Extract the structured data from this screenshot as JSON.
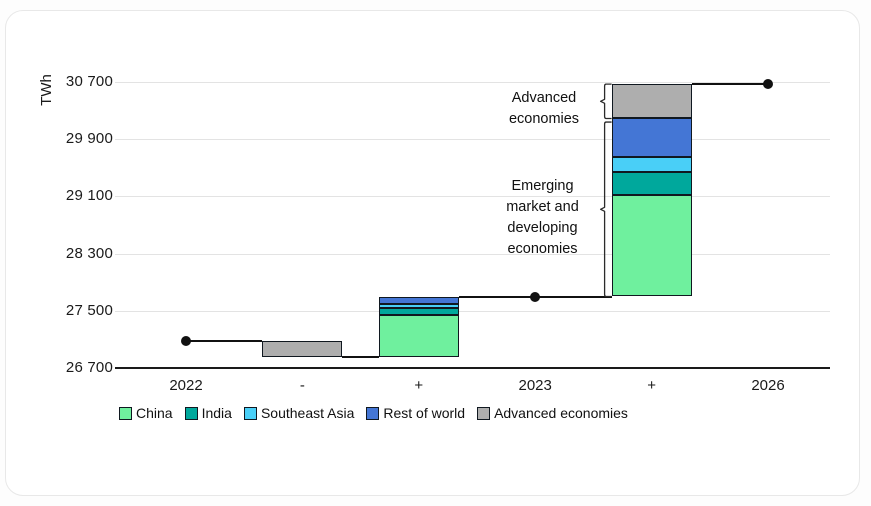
{
  "chart_data": {
    "type": "bar",
    "subtype": "waterfall-stacked",
    "title": "",
    "unit": "TWh",
    "xlabel": "",
    "ylabel": "TWh",
    "ylim": [
      26700,
      30700
    ],
    "yticks": [
      26700,
      27500,
      28300,
      29100,
      29900,
      30700
    ],
    "ytick_labels": [
      "26 700",
      "27 500",
      "28 300",
      "29 100",
      "29 900",
      "30 700"
    ],
    "categories": [
      "2022",
      "-",
      "+",
      "2023",
      "+",
      "2026"
    ],
    "grid": true,
    "legend_position": "bottom",
    "series": [
      {
        "name": "China",
        "color": "#6ff09e"
      },
      {
        "name": "India",
        "color": "#00a89c"
      },
      {
        "name": "Southeast Asia",
        "color": "#49cff7"
      },
      {
        "name": "Rest of world",
        "color": "#4476d5"
      },
      {
        "name": "Advanced economies",
        "color": "#aeaeae"
      }
    ],
    "points": [
      {
        "id": "point-2022",
        "category_index": 0,
        "label": "2022",
        "value": 27075
      },
      {
        "id": "point-2023",
        "category_index": 3,
        "label": "2023",
        "value": 27700
      },
      {
        "id": "point-2026",
        "category_index": 5,
        "label": "2026",
        "value": 30670
      }
    ],
    "bars": [
      {
        "id": "decline-advanced-2023",
        "category_index": 1,
        "label": "-",
        "base": 26855,
        "segments": [
          {
            "name": "Advanced economies",
            "value": 220
          }
        ]
      },
      {
        "id": "growth-emde-2023",
        "category_index": 2,
        "label": "+",
        "base": 26855,
        "segments": [
          {
            "name": "China",
            "value": 580
          },
          {
            "name": "India",
            "value": 110
          },
          {
            "name": "Southeast Asia",
            "value": 55
          },
          {
            "name": "Rest of world",
            "value": 100
          }
        ]
      },
      {
        "id": "growth-2026",
        "category_index": 4,
        "label": "+",
        "base": 27700,
        "segments": [
          {
            "name": "China",
            "value": 1420
          },
          {
            "name": "India",
            "value": 325
          },
          {
            "name": "Southeast Asia",
            "value": 210
          },
          {
            "name": "Rest of world",
            "value": 535
          },
          {
            "name": "Advanced economies",
            "value": 480
          }
        ]
      }
    ],
    "connectors": [
      {
        "value": 27075,
        "from": {
          "col": 0,
          "edge": "center"
        },
        "to": {
          "col": 1,
          "edge": "left"
        }
      },
      {
        "value": 26855,
        "from": {
          "col": 1,
          "edge": "right"
        },
        "to": {
          "col": 2,
          "edge": "left"
        }
      },
      {
        "value": 27700,
        "from": {
          "col": 2,
          "edge": "right"
        },
        "to": {
          "col": 4,
          "edge": "left"
        }
      },
      {
        "value": 30670,
        "from": {
          "col": 4,
          "edge": "right"
        },
        "to": {
          "col": 5,
          "edge": "center"
        }
      }
    ],
    "annotations": [
      {
        "id": "advanced-economies",
        "text": "Advanced\neconomies",
        "bracket_from": 30190,
        "bracket_to": 30670
      },
      {
        "id": "emerging-economies",
        "text": "Emerging\nmarket and\ndeveloping\neconomies",
        "bracket_from": 27700,
        "bracket_to": 30140
      }
    ],
    "colors": {
      "axis": "#1a1a1a",
      "gridline": "#e3e3e3",
      "connector": "#111111",
      "dot": "#111111",
      "segment_border": "#101820",
      "bracket": "#2b2b2b"
    }
  }
}
